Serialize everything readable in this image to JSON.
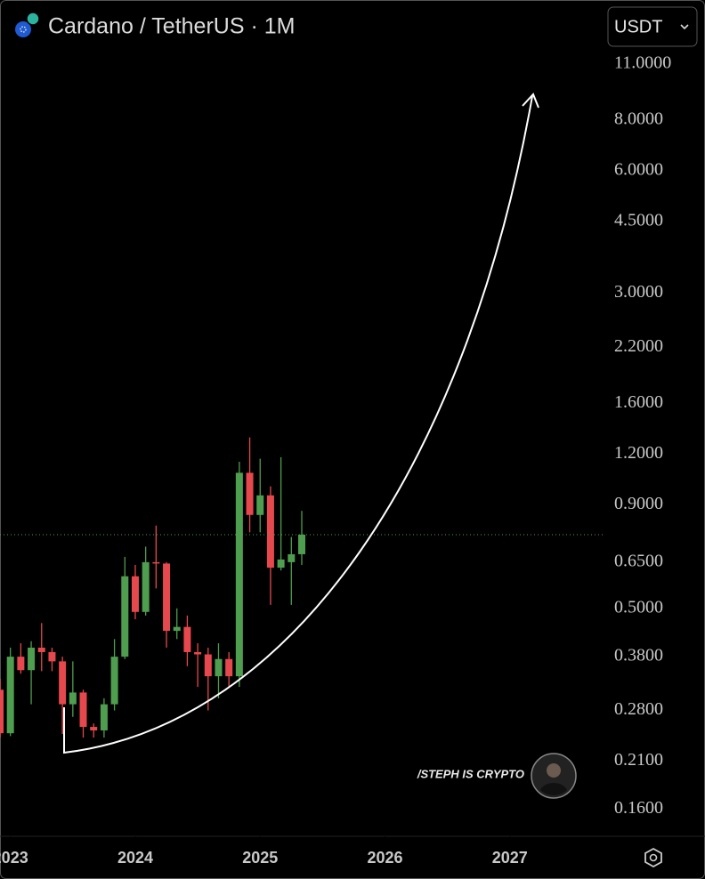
{
  "chart_data": {
    "type": "candlestick",
    "title": "Cardano / TetherUS · 1M",
    "currency_button": "USDT",
    "watermark": "/STEPH IS CRYPTO",
    "log_scale": true,
    "up_color": "#4f9d4f",
    "down_color": "#e5484d",
    "x": [
      "2022-12",
      "2023-01",
      "2023-02",
      "2023-03",
      "2023-04",
      "2023-05",
      "2023-06",
      "2023-07",
      "2023-08",
      "2023-09",
      "2023-10",
      "2023-11",
      "2023-12",
      "2024-01",
      "2024-02",
      "2024-03",
      "2024-04",
      "2024-05",
      "2024-06",
      "2024-07",
      "2024-08",
      "2024-09",
      "2024-10",
      "2024-11",
      "2024-12",
      "2025-01",
      "2025-02",
      "2025-03",
      "2025-04",
      "2025-05"
    ],
    "open": [
      0.315,
      0.246,
      0.38,
      0.352,
      0.4,
      0.39,
      0.37,
      0.29,
      0.31,
      0.255,
      0.25,
      0.29,
      0.38,
      0.6,
      0.49,
      0.65,
      0.645,
      0.44,
      0.45,
      0.39,
      0.385,
      0.34,
      0.375,
      0.34,
      1.08,
      0.85,
      0.95,
      0.63,
      0.65,
      0.68
    ],
    "high": [
      0.335,
      0.4,
      0.41,
      0.415,
      0.46,
      0.4,
      0.38,
      0.37,
      0.315,
      0.26,
      0.3,
      0.42,
      0.67,
      0.64,
      0.71,
      0.8,
      0.65,
      0.5,
      0.48,
      0.41,
      0.4,
      0.41,
      0.39,
      1.15,
      1.32,
      1.17,
      1.0,
      1.18,
      0.75,
      0.87
    ],
    "low": [
      0.24,
      0.242,
      0.345,
      0.29,
      0.35,
      0.35,
      0.245,
      0.27,
      0.24,
      0.24,
      0.24,
      0.28,
      0.375,
      0.47,
      0.48,
      0.56,
      0.4,
      0.42,
      0.36,
      0.32,
      0.28,
      0.3,
      0.32,
      0.32,
      0.77,
      0.77,
      0.51,
      0.62,
      0.51,
      0.64
    ],
    "close": [
      0.246,
      0.38,
      0.352,
      0.4,
      0.39,
      0.37,
      0.29,
      0.31,
      0.255,
      0.25,
      0.29,
      0.38,
      0.6,
      0.49,
      0.65,
      0.645,
      0.44,
      0.45,
      0.39,
      0.385,
      0.34,
      0.375,
      0.34,
      1.08,
      0.85,
      0.95,
      0.63,
      0.66,
      0.68,
      0.76
    ],
    "xlim": [
      "2022-12",
      "2027-10"
    ],
    "xticks": [
      {
        "value": "2023-01",
        "label": "2023"
      },
      {
        "value": "2024-01",
        "label": "2024"
      },
      {
        "value": "2025-01",
        "label": "2025"
      },
      {
        "value": "2026-01",
        "label": "2026"
      },
      {
        "value": "2027-01",
        "label": "2027"
      }
    ],
    "ylim": [
      0.137,
      12.3
    ],
    "yticks": [
      {
        "value": 11,
        "label": "11.0000"
      },
      {
        "value": 8,
        "label": "8.0000"
      },
      {
        "value": 6,
        "label": "6.0000"
      },
      {
        "value": 4.5,
        "label": "4.5000"
      },
      {
        "value": 3,
        "label": "3.0000"
      },
      {
        "value": 2.2,
        "label": "2.2000"
      },
      {
        "value": 1.6,
        "label": "1.6000"
      },
      {
        "value": 1.2,
        "label": "1.2000"
      },
      {
        "value": 0.9,
        "label": "0.9000"
      },
      {
        "value": 0.65,
        "label": "0.6500"
      },
      {
        "value": 0.5,
        "label": "0.5000"
      },
      {
        "value": 0.38,
        "label": "0.3800"
      },
      {
        "value": 0.28,
        "label": "0.2800"
      },
      {
        "value": 0.21,
        "label": "0.2100"
      },
      {
        "value": 0.16,
        "label": "0.1600"
      }
    ]
  }
}
